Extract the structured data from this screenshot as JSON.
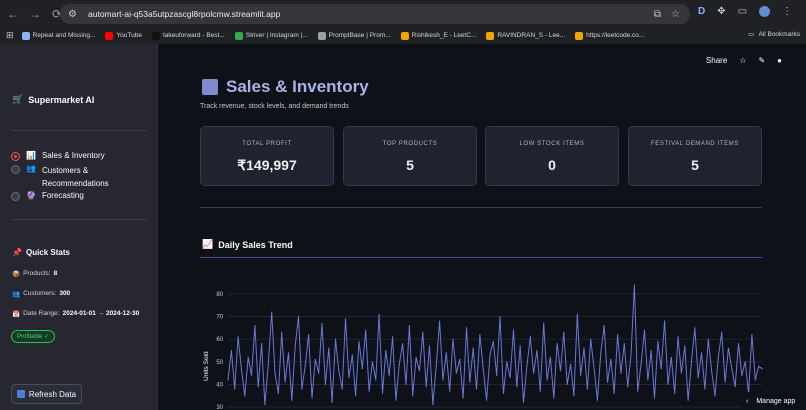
{
  "browser": {
    "url": "automart-ai-q53a5utpzascgl8rpolcmw.streamlit.app",
    "bookmarks": [
      {
        "label": "Repeat and Missing...",
        "color": "#8ab4f8"
      },
      {
        "label": "YouTube",
        "color": "#ff0000"
      },
      {
        "label": "takeuforward - Best...",
        "color": "#111111"
      },
      {
        "label": "Striver | Instagram |...",
        "color": "#34a853"
      },
      {
        "label": "PromptBase | Prom...",
        "color": "#9aa0a6"
      },
      {
        "label": "Rishikesh_E - LeetC...",
        "color": "#f0a500"
      },
      {
        "label": "RAVINDRAN_S - Lee...",
        "color": "#f0a500"
      },
      {
        "label": "https://leetcode.co...",
        "color": "#f0a500"
      }
    ],
    "all_bookmarks": "All Bookmarks",
    "profile_letter": "D"
  },
  "sidebar": {
    "brand": "Supermarket AI",
    "brand_icon": "🛒",
    "nav": [
      {
        "icon": "📊",
        "label": "Sales & Inventory",
        "selected": true
      },
      {
        "icon": "👥",
        "label": "Customers & Recommendations",
        "selected": false
      },
      {
        "icon": "🔮",
        "label": "Forecasting",
        "selected": false
      }
    ],
    "quick_stats_title": "Quick Stats",
    "quick_stats_icon": "📌",
    "stats": {
      "products_label": "Products:",
      "products_value": "8",
      "customers_label": "Customers:",
      "customers_value": "300",
      "date_label": "Date Range:",
      "date_value": "2024-01-01 → 2024-12-30"
    },
    "status_pill": "Profitable ✓",
    "refresh_label": "Refresh Data"
  },
  "header": {
    "share": "Share"
  },
  "main": {
    "title": "Sales & Inventory",
    "subtitle": "Track revenue, stock levels, and demand trends",
    "cards": [
      {
        "label": "TOTAL PROFIT",
        "value": "₹149,997"
      },
      {
        "label": "TOP PRODUCTS",
        "value": "5"
      },
      {
        "label": "LOW STOCK ITEMS",
        "value": "0"
      },
      {
        "label": "FESTIVAL DEMAND ITEMS",
        "value": "5"
      }
    ],
    "section_title": "Daily Sales Trend",
    "section_icon": "📈"
  },
  "manage_app": "Manage app",
  "chart_data": {
    "type": "line",
    "title": "",
    "xlabel": "",
    "ylabel": "Units Sold",
    "y_ticks": [
      30,
      40,
      50,
      60,
      70,
      80
    ],
    "ylim": [
      30,
      85
    ],
    "grid": true,
    "color": "#6a78d6",
    "x": [
      1,
      2,
      3,
      4,
      5,
      6,
      7,
      8,
      9,
      10,
      11,
      12,
      13,
      14,
      15,
      16,
      17,
      18,
      19,
      20,
      21,
      22,
      23,
      24,
      25,
      26,
      27,
      28,
      29,
      30,
      31,
      32,
      33,
      34,
      35,
      36,
      37,
      38,
      39,
      40,
      41,
      42,
      43,
      44,
      45,
      46,
      47,
      48,
      49,
      50,
      51,
      52,
      53,
      54,
      55,
      56,
      57,
      58,
      59,
      60,
      61,
      62,
      63,
      64,
      65,
      66,
      67,
      68,
      69,
      70,
      71,
      72,
      73,
      74,
      75,
      76,
      77,
      78,
      79,
      80,
      81,
      82,
      83,
      84,
      85,
      86,
      87,
      88,
      89,
      90,
      91,
      92,
      93,
      94,
      95,
      96,
      97,
      98,
      99,
      100,
      101,
      102,
      103,
      104,
      105,
      106,
      107,
      108,
      109,
      110,
      111,
      112,
      113,
      114,
      115,
      116,
      117,
      118,
      119,
      120,
      121,
      122,
      123,
      124,
      125,
      126,
      127,
      128,
      129,
      130,
      131,
      132,
      133,
      134,
      135,
      136,
      137,
      138,
      139,
      140,
      141,
      142,
      143,
      144,
      145,
      146,
      147,
      148,
      149,
      150,
      151,
      152,
      153,
      154,
      155,
      156,
      157,
      158,
      159,
      160
    ],
    "values": [
      42,
      55,
      38,
      61,
      47,
      35,
      52,
      44,
      66,
      39,
      58,
      31,
      49,
      72,
      45,
      36,
      63,
      41,
      54,
      33,
      57,
      70,
      38,
      48,
      62,
      34,
      51,
      45,
      67,
      40,
      56,
      32,
      60,
      46,
      38,
      69,
      43,
      53,
      35,
      59,
      47,
      64,
      37,
      50,
      42,
      71,
      36,
      55,
      44,
      61,
      33,
      49,
      58,
      40,
      66,
      35,
      52,
      46,
      63,
      39,
      57,
      31,
      48,
      68,
      42,
      54,
      37,
      60,
      45,
      51,
      34,
      65,
      41,
      56,
      38,
      62,
      47,
      33,
      53,
      59,
      44,
      70,
      36,
      50,
      43,
      64,
      39,
      57,
      32,
      48,
      61,
      45,
      55,
      37,
      67,
      42,
      52,
      34,
      58,
      46,
      63,
      40,
      49,
      35,
      71,
      44,
      56,
      38,
      60,
      47,
      33,
      54,
      66,
      41,
      51,
      36,
      62,
      45,
      58,
      39,
      53,
      84,
      37,
      49,
      64,
      42,
      55,
      34,
      59,
      47,
      68,
      40,
      52,
      36,
      61,
      45,
      57,
      33,
      50,
      65,
      43,
      54,
      38,
      60,
      46,
      35,
      52,
      63,
      41,
      56,
      47,
      39,
      58,
      44,
      50,
      36,
      62,
      42,
      48,
      47
    ]
  }
}
